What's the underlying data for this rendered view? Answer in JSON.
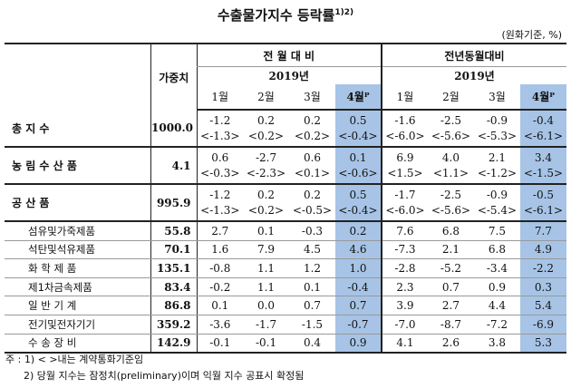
{
  "title": "수출물가지수 등락률",
  "title_note": "1)2)",
  "unit": "(원화기준, %)",
  "header": {
    "weight_label": "가중치",
    "mom_label": "전 월 대 비",
    "yoy_label": "전년동월대비",
    "year_label": "2019년",
    "months": [
      "1월",
      "2월",
      "3월",
      "4월ᴾ"
    ]
  },
  "rows": [
    {
      "name": "총 지 수",
      "weight": "1000.0",
      "mom": [
        "-1.2",
        "0.2",
        "0.2",
        "0.5"
      ],
      "mom_c": [
        "<-1.3>",
        "<0.2>",
        "<0.2>",
        "<-0.4>"
      ],
      "yoy": [
        "-1.6",
        "-2.5",
        "-0.9",
        "-0.4"
      ],
      "yoy_c": [
        "<-6.0>",
        "<-5.6>",
        "<-5.3>",
        "<-6.1>"
      ]
    },
    {
      "name": "농 림 수 산 품",
      "weight": "4.1",
      "mom": [
        "0.6",
        "-2.7",
        "0.6",
        "0.1"
      ],
      "mom_c": [
        "<-0.3>",
        "<-2.3>",
        "<0.1>",
        "<-0.6>"
      ],
      "yoy": [
        "6.9",
        "4.0",
        "2.1",
        "3.4"
      ],
      "yoy_c": [
        "<1.5>",
        "<1.1>",
        "<-1.2>",
        "<-1.5>"
      ]
    },
    {
      "name": "공 산 품",
      "weight": "995.9",
      "mom": [
        "-1.2",
        "0.2",
        "0.2",
        "0.5"
      ],
      "mom_c": [
        "<-1.3>",
        "<0.2>",
        "<-0.5>",
        "<-0.4>"
      ],
      "yoy": [
        "-1.7",
        "-2.5",
        "-0.9",
        "-0.5"
      ],
      "yoy_c": [
        "<-6.0>",
        "<-5.6>",
        "<-5.4>",
        "<-6.1>"
      ]
    }
  ],
  "subrows": [
    {
      "name": "섬유및가죽제품",
      "weight": "55.8",
      "mom": [
        "2.7",
        "0.1",
        "-0.3",
        "0.2"
      ],
      "yoy": [
        "7.6",
        "6.8",
        "7.5",
        "7.7"
      ]
    },
    {
      "name": "석탄및석유제품",
      "weight": "70.1",
      "mom": [
        "1.6",
        "7.9",
        "4.5",
        "4.6"
      ],
      "yoy": [
        "-7.3",
        "2.1",
        "6.8",
        "4.9"
      ]
    },
    {
      "name": "화 학 제 품",
      "weight": "135.1",
      "mom": [
        "-0.8",
        "1.1",
        "1.2",
        "1.0"
      ],
      "yoy": [
        "-2.8",
        "-5.2",
        "-3.4",
        "-2.2"
      ]
    },
    {
      "name": "제1차금속제품",
      "weight": "83.4",
      "mom": [
        "-0.2",
        "1.1",
        "0.1",
        "-0.4"
      ],
      "yoy": [
        "2.3",
        "0.7",
        "0.9",
        "0.3"
      ]
    },
    {
      "name": "일 반 기 계",
      "weight": "86.8",
      "mom": [
        "0.1",
        "0.0",
        "0.7",
        "0.7"
      ],
      "yoy": [
        "3.9",
        "2.7",
        "4.4",
        "5.4"
      ]
    },
    {
      "name": "전기및전자기기",
      "weight": "359.2",
      "mom": [
        "-3.6",
        "-1.7",
        "-1.5",
        "-0.7"
      ],
      "yoy": [
        "-7.0",
        "-8.7",
        "-7.2",
        "-6.9"
      ]
    },
    {
      "name": "수 송 장 비",
      "weight": "142.9",
      "mom": [
        "-0.1",
        "-0.1",
        "0.4",
        "0.9"
      ],
      "yoy": [
        "4.1",
        "2.6",
        "3.8",
        "5.3"
      ]
    }
  ],
  "notes": {
    "label": "주 :",
    "note1": "1) < >내는 계약통화기준임",
    "note2": "2) 당월 지수는 잠정치(preliminary)이며 익월 지수 공표시 확정됨"
  },
  "colors": {
    "highlight": "#a7c4e6"
  }
}
